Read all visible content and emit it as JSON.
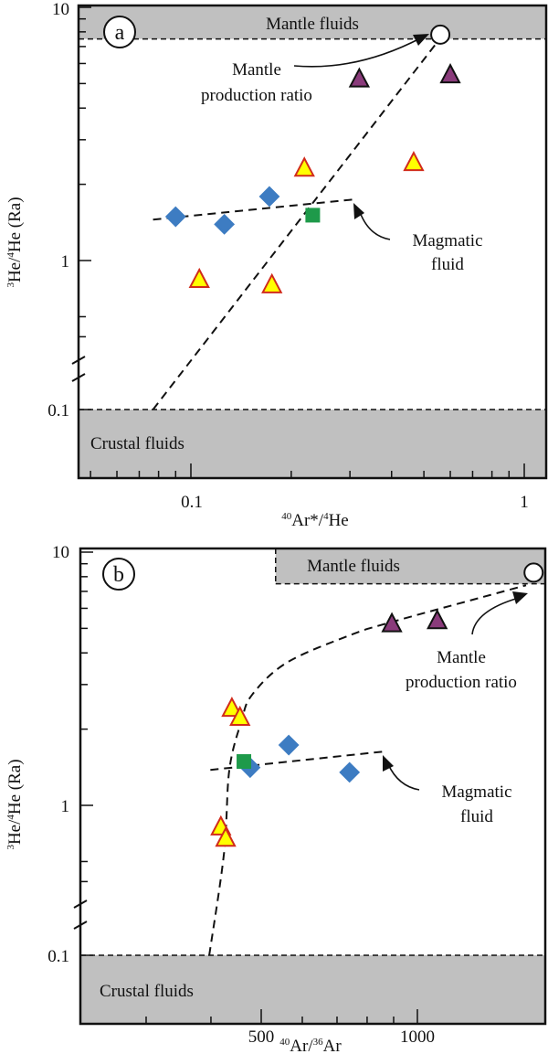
{
  "chart_data": [
    {
      "type": "scatter",
      "panel": "a",
      "xscale": "log",
      "yscale": "log (broken between 0.1 and 1)",
      "xlim": [
        0.046,
        1.15
      ],
      "ylim": [
        0.054,
        10
      ],
      "xticks": [
        "0.1",
        "1"
      ],
      "yticks": [
        "10",
        "1",
        "0.1"
      ],
      "xlabel": {
        "sup": "40",
        "text": "Ar*/",
        "sup2": "4",
        "text2": "He"
      },
      "ylabel": {
        "sup": "3",
        "text": "He/",
        "sup2": "4",
        "text2": "He (Ra)"
      },
      "bands": {
        "mantle": {
          "label": "Mantle fluids",
          "ymin": 7.5
        },
        "crustal": {
          "label": "Crustal fluids",
          "ymax": 0.1
        }
      },
      "annotations": {
        "mantle_ratio": [
          "Mantle",
          "production ratio"
        ],
        "magmatic": [
          "Magmatic",
          "fluid"
        ]
      },
      "series": [
        {
          "name": "yellow-triangle",
          "marker": "triangle",
          "fill": "#ffff00",
          "stroke": "#d12b1b",
          "points": [
            [
              0.219,
              2.31
            ],
            [
              0.466,
              2.43
            ],
            [
              0.106,
              0.84
            ],
            [
              0.175,
              0.8
            ]
          ]
        },
        {
          "name": "purple-triangle",
          "marker": "triangle",
          "fill": "#8a3b7b",
          "stroke": "#111111",
          "points": [
            [
              0.32,
              5.2
            ],
            [
              0.6,
              5.4
            ]
          ]
        },
        {
          "name": "blue-diamond",
          "marker": "diamond",
          "fill": "#3d7cc2",
          "stroke": "#3d7cc2",
          "points": [
            [
              0.09,
              1.49
            ],
            [
              0.126,
              1.39
            ],
            [
              0.172,
              1.79
            ]
          ]
        },
        {
          "name": "green-square",
          "marker": "square",
          "fill": "#1e9a4a",
          "stroke": "#1e9a4a",
          "points": [
            [
              0.232,
              1.51
            ]
          ]
        },
        {
          "name": "mantle-production-ratio",
          "marker": "circle",
          "fill": "#ffffff",
          "stroke": "#111111",
          "points": [
            [
              0.56,
              7.8
            ]
          ]
        }
      ],
      "lines": [
        {
          "name": "mixing-line",
          "points": [
            [
              0.077,
              0.1
            ],
            [
              0.54,
              7.1
            ]
          ]
        },
        {
          "name": "magmatic-fluid-line",
          "points": [
            [
              0.077,
              1.45
            ],
            [
              0.305,
              1.74
            ]
          ]
        }
      ]
    },
    {
      "type": "scatter",
      "panel": "b",
      "xscale": "log",
      "yscale": "log (broken between 0.1 and 1)",
      "xlim": [
        224,
        1765
      ],
      "ylim": [
        0.054,
        10
      ],
      "xticks": [
        "500",
        "1000"
      ],
      "yticks": [
        "10",
        "1",
        "0.1"
      ],
      "xlabel": {
        "sup": "40",
        "text": "Ar/",
        "sup2": "36",
        "text2": "Ar"
      },
      "ylabel": {
        "sup": "3",
        "text": "He/",
        "sup2": "4",
        "text2": "He (Ra)"
      },
      "bands": {
        "mantle": {
          "label": "Mantle fluids",
          "ymin": 7.5,
          "xmin": 533
        },
        "crustal": {
          "label": "Crustal fluids",
          "ymax": 0.1
        }
      },
      "annotations": {
        "mantle_ratio": [
          "Mantle",
          "production ratio"
        ],
        "magmatic": [
          "Magmatic",
          "fluid"
        ]
      },
      "series": [
        {
          "name": "yellow-triangle",
          "marker": "triangle",
          "fill": "#ffff00",
          "stroke": "#d12b1b",
          "points": [
            [
              439,
              2.41
            ],
            [
              455,
              2.22
            ],
            [
              418,
              0.82
            ],
            [
              427,
              0.74
            ]
          ]
        },
        {
          "name": "purple-triangle",
          "marker": "triangle",
          "fill": "#8a3b7b",
          "stroke": "#111111",
          "points": [
            [
              893,
              5.2
            ],
            [
              1092,
              5.35
            ]
          ]
        },
        {
          "name": "blue-diamond",
          "marker": "diamond",
          "fill": "#3d7cc2",
          "stroke": "#3d7cc2",
          "points": [
            [
              565,
              1.73
            ],
            [
              476,
              1.41
            ],
            [
              740,
              1.35
            ]
          ]
        },
        {
          "name": "green-square",
          "marker": "square",
          "fill": "#1e9a4a",
          "stroke": "#1e9a4a",
          "points": [
            [
              463,
              1.49
            ]
          ]
        },
        {
          "name": "mantle-production-ratio",
          "marker": "circle",
          "fill": "#ffffff",
          "stroke": "#111111",
          "points": [
            [
              1675,
              8.3
            ]
          ]
        }
      ],
      "lines": [
        {
          "name": "mixing-curve",
          "points": [
            [
              397,
              0.1
            ],
            [
              424,
              0.65
            ],
            [
              434,
              1.38
            ],
            [
              458,
              2.15
            ],
            [
              480,
              2.73
            ],
            [
              560,
              3.66
            ],
            [
              740,
              4.69
            ],
            [
              893,
              5.3
            ],
            [
              1620,
              7.4
            ]
          ]
        },
        {
          "name": "magmatic-fluid-line",
          "points": [
            [
              399,
              1.38
            ],
            [
              858,
              1.63
            ]
          ]
        }
      ]
    }
  ]
}
